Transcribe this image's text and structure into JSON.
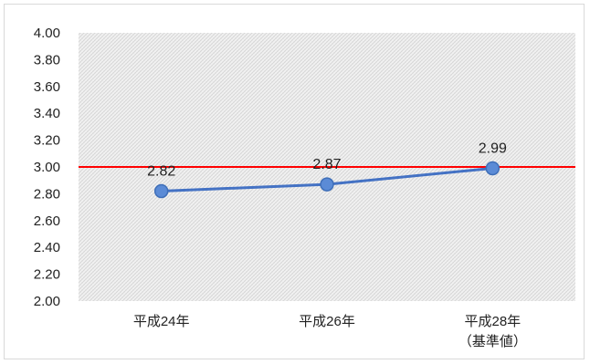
{
  "chart_data": {
    "type": "line",
    "categories": [
      [
        "平成24年"
      ],
      [
        "平成26年"
      ],
      [
        "平成28年",
        "（基準値）"
      ]
    ],
    "series": [
      {
        "values": [
          2.82,
          2.87,
          2.99
        ],
        "data_labels": [
          "2.82",
          "2.87",
          "2.99"
        ],
        "color": "#4472c4"
      }
    ],
    "reference_line": {
      "value": 3.0,
      "color": "#ff0000"
    },
    "y_ticks": [
      "2.00",
      "2.20",
      "2.40",
      "2.60",
      "2.80",
      "3.00",
      "3.20",
      "3.40",
      "3.60",
      "3.80",
      "4.00"
    ],
    "ylim": [
      2.0,
      4.0
    ],
    "grid": false,
    "plot_background": "hatched-gray",
    "title": "",
    "xlabel": "",
    "ylabel": ""
  }
}
